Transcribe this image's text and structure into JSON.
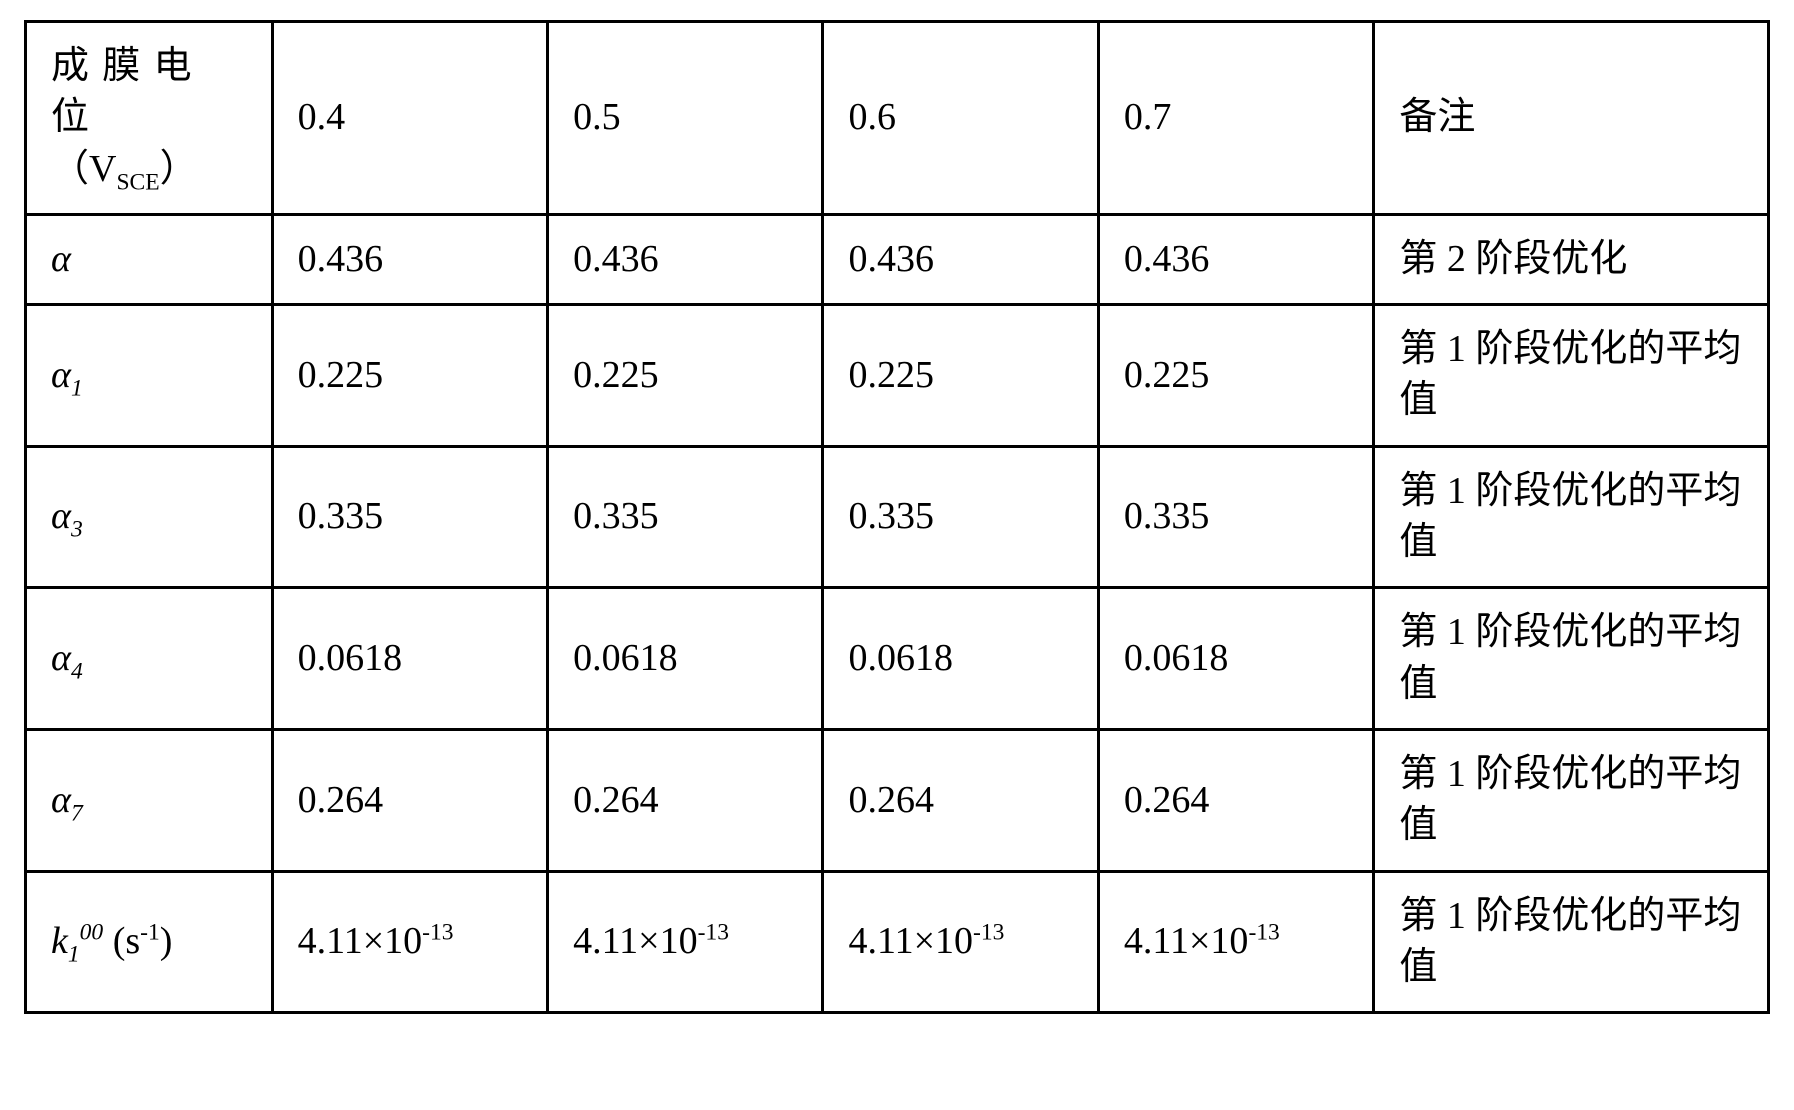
{
  "table": {
    "border_color": "#000000",
    "background_color": "#ffffff",
    "text_color": "#000000",
    "font_size_pt": 28,
    "columns": [
      "param",
      "v1",
      "v2",
      "v3",
      "v4",
      "note"
    ],
    "header": {
      "param_line1": "成膜电位",
      "param_line2_prefix": "（V",
      "param_line2_sub": "SCE",
      "param_line2_suffix": "）",
      "v1": "0.4",
      "v2": "0.5",
      "v3": "0.6",
      "v4": "0.7",
      "note": "备注"
    },
    "rows": [
      {
        "param_html": "α",
        "v1": "0.436",
        "v2": "0.436",
        "v3": "0.436",
        "v4": "0.436",
        "note": "第 2 阶段优化"
      },
      {
        "param_html": "α₁",
        "param_base": "α",
        "param_sub": "1",
        "v1": "0.225",
        "v2": "0.225",
        "v3": "0.225",
        "v4": "0.225",
        "note": "第 1 阶段优化的平均值"
      },
      {
        "param_base": "α",
        "param_sub": "3",
        "v1": "0.335",
        "v2": "0.335",
        "v3": "0.335",
        "v4": "0.335",
        "note": "第 1 阶段优化的平均值"
      },
      {
        "param_base": "α",
        "param_sub": "4",
        "v1": "0.0618",
        "v2": "0.0618",
        "v3": "0.0618",
        "v4": "0.0618",
        "note": "第 1 阶段优化的平均值"
      },
      {
        "param_base": "α",
        "param_sub": "7",
        "v1": "0.264",
        "v2": "0.264",
        "v3": "0.264",
        "v4": "0.264",
        "note": "第 1 阶段优化的平均值"
      },
      {
        "param_base": "k",
        "param_sub": "1",
        "param_sup": "00",
        "param_unit_prefix": " (s",
        "param_unit_sup": "-1",
        "param_unit_suffix": ")",
        "v1_mant": "4.11",
        "v1_exp": "-13",
        "v2_mant": "4.11",
        "v2_exp": "-13",
        "v3_mant": "4.11",
        "v3_exp": "-13",
        "v4_mant": "4.11",
        "v4_exp": "-13",
        "note": "第 1 阶段优化的平均值"
      }
    ]
  }
}
